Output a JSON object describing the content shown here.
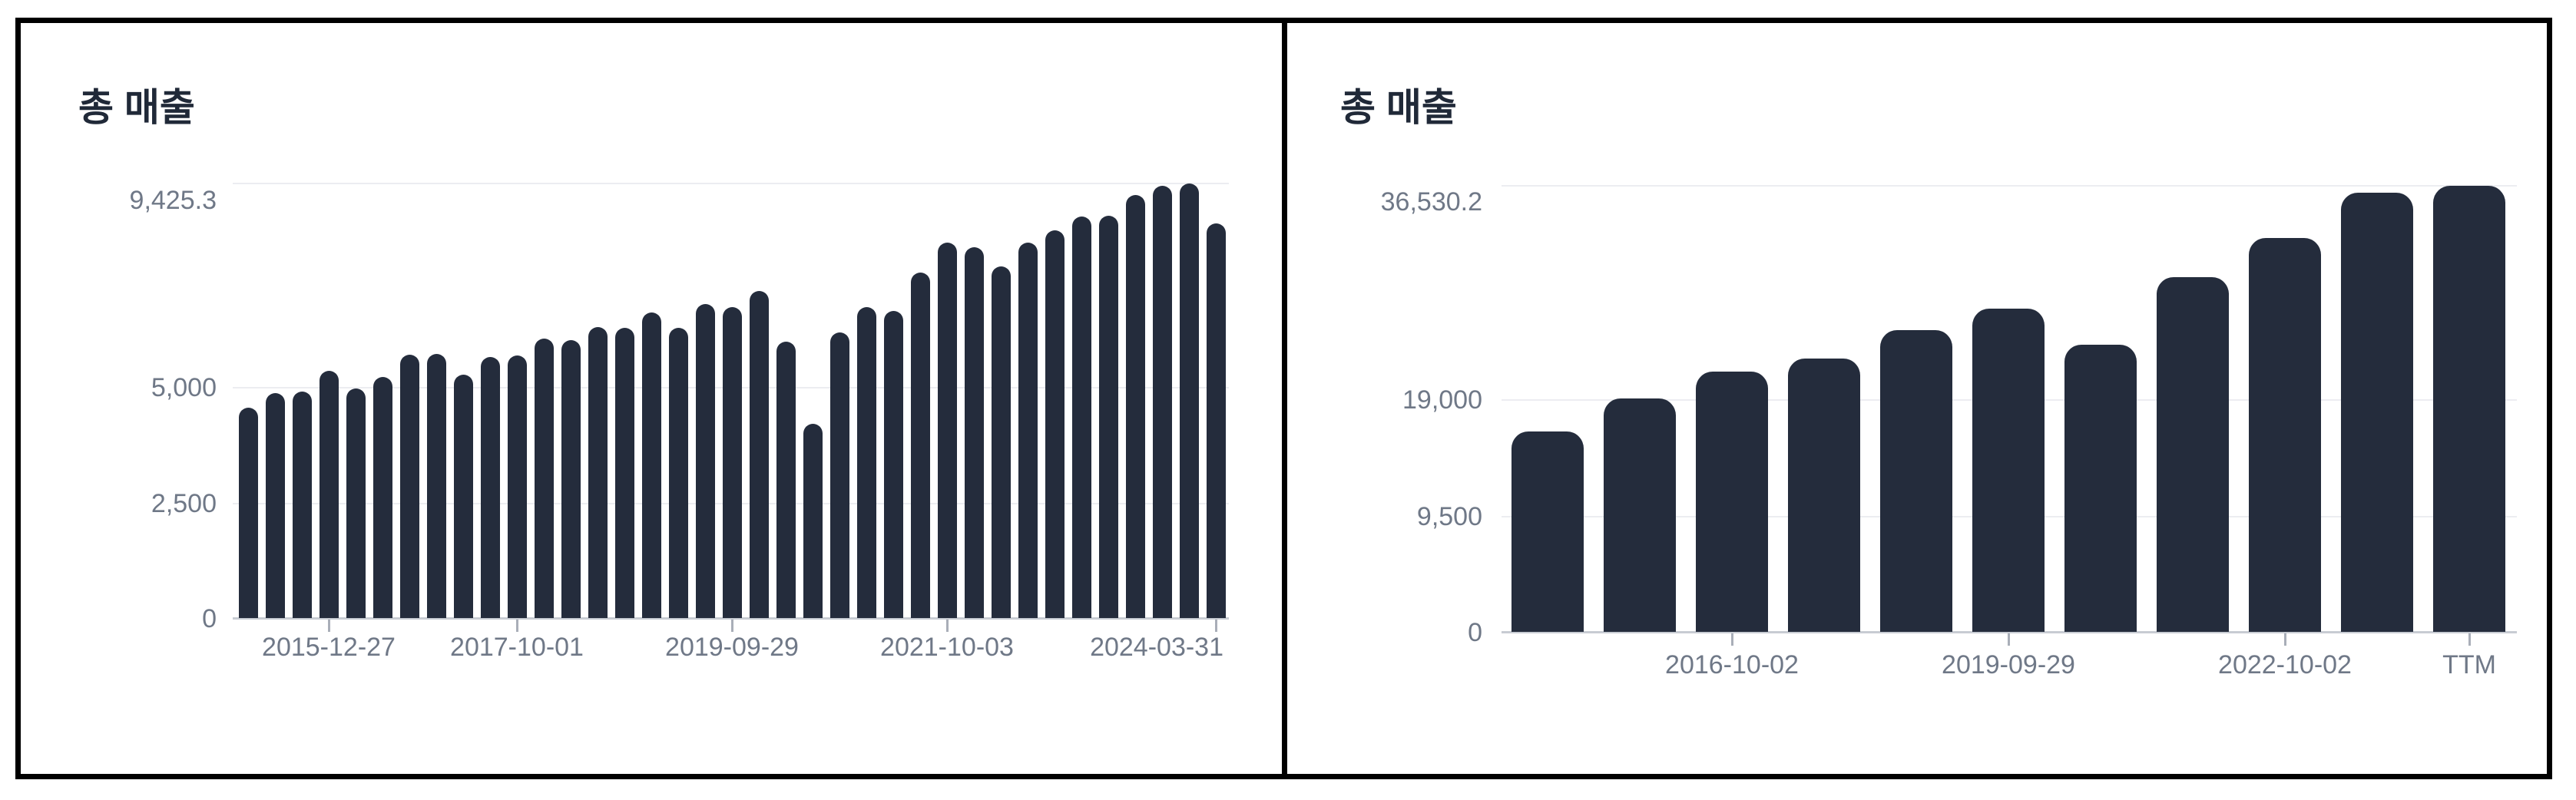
{
  "app": {
    "panel_count": 2,
    "background_color": "#ffffff",
    "frame_border_color": "#000000",
    "bar_color": "#242c3c",
    "title_color": "#202938",
    "axis_label_color": "#6f7887"
  },
  "chart_data": [
    {
      "type": "bar",
      "title": "총 매출",
      "period": "quarterly",
      "x": [
        "2015-03-29",
        "2015-06-28",
        "2015-09-27",
        "2015-12-27",
        "2016-03-27",
        "2016-06-26",
        "2016-10-02",
        "2017-01-01",
        "2017-04-02",
        "2017-07-02",
        "2017-10-01",
        "2017-12-31",
        "2018-04-01",
        "2018-07-01",
        "2018-09-30",
        "2018-12-30",
        "2019-03-31",
        "2019-06-30",
        "2019-09-29",
        "2019-12-29",
        "2020-03-29",
        "2020-06-28",
        "2020-09-27",
        "2020-12-27",
        "2021-03-28",
        "2021-06-27",
        "2021-10-03",
        "2022-01-02",
        "2022-04-03",
        "2022-07-03",
        "2022-10-02",
        "2023-01-01",
        "2023-04-02",
        "2023-07-02",
        "2023-10-01",
        "2023-12-31",
        "2024-03-31"
      ],
      "values": [
        4563.1,
        4881.2,
        4914.7,
        5373.5,
        4993.2,
        5238.0,
        5711.2,
        5732.9,
        5294.0,
        5661.5,
        5698.3,
        6073.7,
        6031.8,
        6310.3,
        6303.6,
        6632.7,
        6305.9,
        6823.0,
        6747.4,
        7097.1,
        5995.7,
        4222.1,
        6203.1,
        6749.4,
        6667.9,
        7497.2,
        8146.7,
        8050.7,
        7635.7,
        8150.3,
        8414.0,
        8714.0,
        8719.6,
        9168.5,
        9374.5,
        9425.3,
        8563.2
      ],
      "x_tick_labels": [
        "2015-12-27",
        "2017-10-01",
        "2019-09-29",
        "2021-10-03",
        "2024-03-31"
      ],
      "x_tick_indices": [
        3,
        10,
        18,
        26,
        36
      ],
      "y_tick_labels": [
        "9,425.3",
        "5,000",
        "2,500",
        "0"
      ],
      "y_tick_values": [
        9425.3,
        5000,
        2500,
        0
      ],
      "ylim": [
        0,
        9425.3
      ],
      "xlabel": "",
      "ylabel": "",
      "grid": true,
      "legend": "none"
    },
    {
      "type": "bar",
      "title": "총 매출",
      "period": "annual",
      "x": [
        "2014-09-28",
        "2015-09-27",
        "2016-10-02",
        "2017-10-01",
        "2018-09-30",
        "2019-09-29",
        "2020-09-27",
        "2021-10-03",
        "2022-10-02",
        "2023-10-01",
        "TTM"
      ],
      "values": [
        16447.8,
        19162.7,
        21315.9,
        22386.8,
        24719.5,
        26508.6,
        23518.0,
        29060.6,
        32250.3,
        35975.6,
        36530.2
      ],
      "x_tick_labels": [
        "2016-10-02",
        "2019-09-29",
        "2022-10-02",
        "TTM"
      ],
      "x_tick_indices": [
        2,
        5,
        8,
        10
      ],
      "y_tick_labels": [
        "36,530.2",
        "19,000",
        "9,500",
        "0"
      ],
      "y_tick_values": [
        36530.2,
        19000,
        9500,
        0
      ],
      "ylim": [
        0,
        36530.2
      ],
      "xlabel": "",
      "ylabel": "",
      "grid": true,
      "legend": "none"
    }
  ]
}
